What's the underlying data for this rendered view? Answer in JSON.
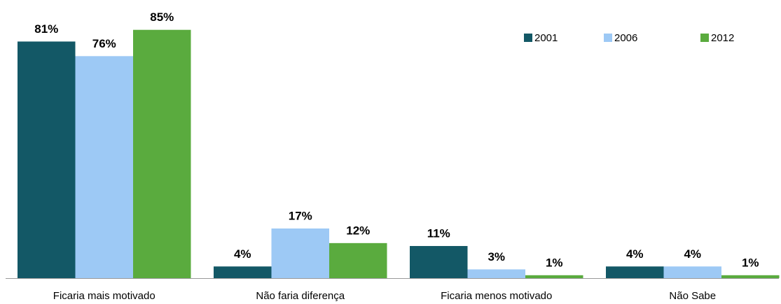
{
  "chart_data": {
    "type": "bar",
    "categories": [
      "Ficaria mais motivado",
      "Não faria diferença",
      "Ficaria menos motivado",
      "Não Sabe"
    ],
    "series": [
      {
        "name": "2001",
        "color": "#135866",
        "values": [
          81,
          4,
          11,
          4
        ],
        "value_labels": [
          "81%",
          "4%",
          "11%",
          "4%"
        ]
      },
      {
        "name": "2006",
        "color": "#9dc9f5",
        "values": [
          76,
          17,
          3,
          4
        ],
        "value_labels": [
          "76%",
          "17%",
          "3%",
          "4%"
        ]
      },
      {
        "name": "2012",
        "color": "#5aab3e",
        "values": [
          85,
          12,
          1,
          1
        ],
        "value_labels": [
          "85%",
          "12%",
          "1%",
          "1%"
        ]
      }
    ],
    "legend": "top-right"
  }
}
